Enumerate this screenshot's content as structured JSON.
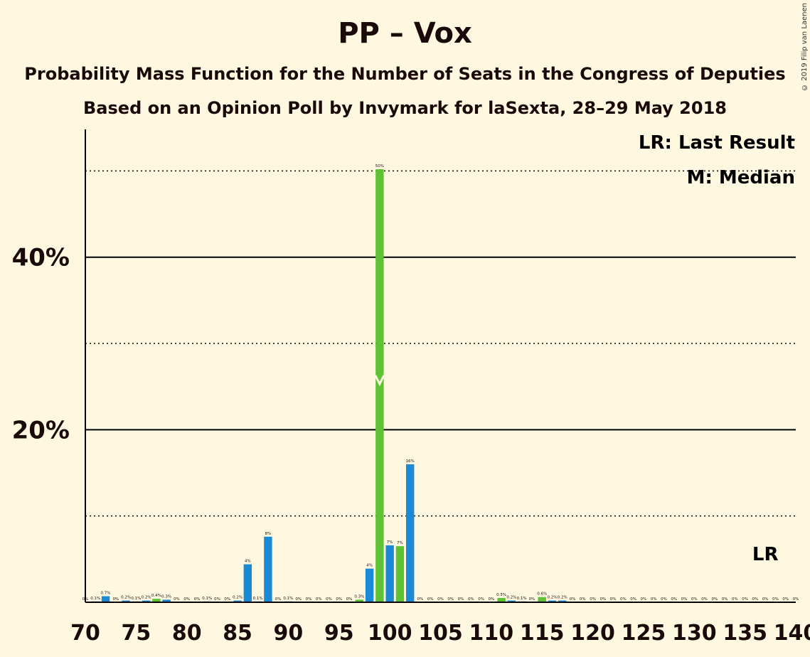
{
  "title": "PP – Vox",
  "subtitle1": "Probability Mass Function for the Number of Seats in the Congress of Deputies",
  "subtitle2": "Based on an Opinion Poll by Invymark for laSexta, 28–29 May 2018",
  "copyright": "© 2019 Filip van Laenen",
  "legend": {
    "lr": "LR: Last Result",
    "median": "M: Median"
  },
  "lr_marker": "LR",
  "median_marker": "M",
  "colors": {
    "blue": "#1a8ad4",
    "green": "#5ec234",
    "background": "#fff8e1"
  },
  "chart_data": {
    "type": "bar",
    "xlim": [
      70,
      140
    ],
    "ylim": [
      0,
      55
    ],
    "x_ticks": [
      70,
      75,
      80,
      85,
      90,
      95,
      100,
      105,
      110,
      115,
      120,
      125,
      130,
      135,
      140
    ],
    "y_ticks": [
      {
        "value": 20,
        "label": "20%"
      },
      {
        "value": 40,
        "label": "40%"
      }
    ],
    "y_dotted": [
      10,
      30,
      50
    ],
    "median": 99,
    "last_result": 137,
    "bars": [
      {
        "x": 70,
        "value": 0,
        "label": "0%",
        "color": "blue"
      },
      {
        "x": 71,
        "value": 0.1,
        "label": "0.1%",
        "color": "blue"
      },
      {
        "x": 72,
        "value": 0.7,
        "label": "0.7%",
        "color": "blue"
      },
      {
        "x": 73,
        "value": 0,
        "label": "0%",
        "color": "blue"
      },
      {
        "x": 74,
        "value": 0.2,
        "label": "0.2%",
        "color": "blue"
      },
      {
        "x": 75,
        "value": 0.1,
        "label": "0.1%",
        "color": "blue"
      },
      {
        "x": 76,
        "value": 0.2,
        "label": "0.2%",
        "color": "blue"
      },
      {
        "x": 77,
        "value": 0.4,
        "label": "0.4%",
        "color": "green"
      },
      {
        "x": 78,
        "value": 0.3,
        "label": "0.3%",
        "color": "blue"
      },
      {
        "x": 79,
        "value": 0,
        "label": "0%",
        "color": "blue"
      },
      {
        "x": 80,
        "value": 0,
        "label": "0%",
        "color": "blue"
      },
      {
        "x": 81,
        "value": 0,
        "label": "0%",
        "color": "blue"
      },
      {
        "x": 82,
        "value": 0.1,
        "label": "0.1%",
        "color": "blue"
      },
      {
        "x": 83,
        "value": 0,
        "label": "0%",
        "color": "blue"
      },
      {
        "x": 84,
        "value": 0,
        "label": "0%",
        "color": "blue"
      },
      {
        "x": 85,
        "value": 0.2,
        "label": "0.2%",
        "color": "blue"
      },
      {
        "x": 86,
        "value": 4.4,
        "label": "4%",
        "color": "blue"
      },
      {
        "x": 87,
        "value": 0.1,
        "label": "0.1%",
        "color": "blue"
      },
      {
        "x": 88,
        "value": 7.6,
        "label": "8%",
        "color": "blue"
      },
      {
        "x": 89,
        "value": 0,
        "label": "0%",
        "color": "blue"
      },
      {
        "x": 90,
        "value": 0.1,
        "label": "0.1%",
        "color": "blue"
      },
      {
        "x": 91,
        "value": 0,
        "label": "0%",
        "color": "blue"
      },
      {
        "x": 92,
        "value": 0,
        "label": "0%",
        "color": "blue"
      },
      {
        "x": 93,
        "value": 0,
        "label": "0%",
        "color": "blue"
      },
      {
        "x": 94,
        "value": 0,
        "label": "0%",
        "color": "blue"
      },
      {
        "x": 95,
        "value": 0,
        "label": "0%",
        "color": "blue"
      },
      {
        "x": 96,
        "value": 0,
        "label": "0%",
        "color": "blue"
      },
      {
        "x": 97,
        "value": 0.3,
        "label": "0.3%",
        "color": "green"
      },
      {
        "x": 98,
        "value": 3.9,
        "label": "4%",
        "color": "blue"
      },
      {
        "x": 99,
        "value": 50.2,
        "label": "50%",
        "color": "green"
      },
      {
        "x": 100,
        "value": 6.6,
        "label": "7%",
        "color": "blue"
      },
      {
        "x": 101,
        "value": 6.5,
        "label": "7%",
        "color": "green"
      },
      {
        "x": 102,
        "value": 16.0,
        "label": "16%",
        "color": "blue"
      },
      {
        "x": 103,
        "value": 0,
        "label": "0%",
        "color": "blue"
      },
      {
        "x": 104,
        "value": 0,
        "label": "0%",
        "color": "blue"
      },
      {
        "x": 105,
        "value": 0,
        "label": "0%",
        "color": "blue"
      },
      {
        "x": 106,
        "value": 0,
        "label": "0%",
        "color": "blue"
      },
      {
        "x": 107,
        "value": 0,
        "label": "0%",
        "color": "blue"
      },
      {
        "x": 108,
        "value": 0,
        "label": "0%",
        "color": "blue"
      },
      {
        "x": 109,
        "value": 0,
        "label": "0%",
        "color": "blue"
      },
      {
        "x": 110,
        "value": 0,
        "label": "0%",
        "color": "blue"
      },
      {
        "x": 111,
        "value": 0.5,
        "label": "0.5%",
        "color": "green"
      },
      {
        "x": 112,
        "value": 0.2,
        "label": "0.2%",
        "color": "blue"
      },
      {
        "x": 113,
        "value": 0.1,
        "label": "0.1%",
        "color": "blue"
      },
      {
        "x": 114,
        "value": 0,
        "label": "0%",
        "color": "blue"
      },
      {
        "x": 115,
        "value": 0.6,
        "label": "0.6%",
        "color": "green"
      },
      {
        "x": 116,
        "value": 0.2,
        "label": "0.2%",
        "color": "blue"
      },
      {
        "x": 117,
        "value": 0.2,
        "label": "0.2%",
        "color": "blue"
      },
      {
        "x": 118,
        "value": 0,
        "label": "0%",
        "color": "blue"
      },
      {
        "x": 119,
        "value": 0,
        "label": "0%",
        "color": "blue"
      },
      {
        "x": 120,
        "value": 0,
        "label": "0%",
        "color": "blue"
      },
      {
        "x": 121,
        "value": 0,
        "label": "0%",
        "color": "blue"
      },
      {
        "x": 122,
        "value": 0,
        "label": "0%",
        "color": "blue"
      },
      {
        "x": 123,
        "value": 0,
        "label": "0%",
        "color": "blue"
      },
      {
        "x": 124,
        "value": 0,
        "label": "0%",
        "color": "blue"
      },
      {
        "x": 125,
        "value": 0,
        "label": "0%",
        "color": "blue"
      },
      {
        "x": 126,
        "value": 0,
        "label": "0%",
        "color": "blue"
      },
      {
        "x": 127,
        "value": 0,
        "label": "0%",
        "color": "blue"
      },
      {
        "x": 128,
        "value": 0,
        "label": "0%",
        "color": "blue"
      },
      {
        "x": 129,
        "value": 0,
        "label": "0%",
        "color": "blue"
      },
      {
        "x": 130,
        "value": 0,
        "label": "0%",
        "color": "blue"
      },
      {
        "x": 131,
        "value": 0,
        "label": "0%",
        "color": "blue"
      },
      {
        "x": 132,
        "value": 0,
        "label": "0%",
        "color": "blue"
      },
      {
        "x": 133,
        "value": 0,
        "label": "0%",
        "color": "blue"
      },
      {
        "x": 134,
        "value": 0,
        "label": "0%",
        "color": "blue"
      },
      {
        "x": 135,
        "value": 0,
        "label": "0%",
        "color": "blue"
      },
      {
        "x": 136,
        "value": 0,
        "label": "0%",
        "color": "blue"
      },
      {
        "x": 137,
        "value": 0,
        "label": "0%",
        "color": "blue"
      },
      {
        "x": 138,
        "value": 0,
        "label": "0%",
        "color": "blue"
      },
      {
        "x": 139,
        "value": 0,
        "label": "0%",
        "color": "blue"
      },
      {
        "x": 140,
        "value": 0,
        "label": "0%",
        "color": "blue"
      }
    ]
  }
}
